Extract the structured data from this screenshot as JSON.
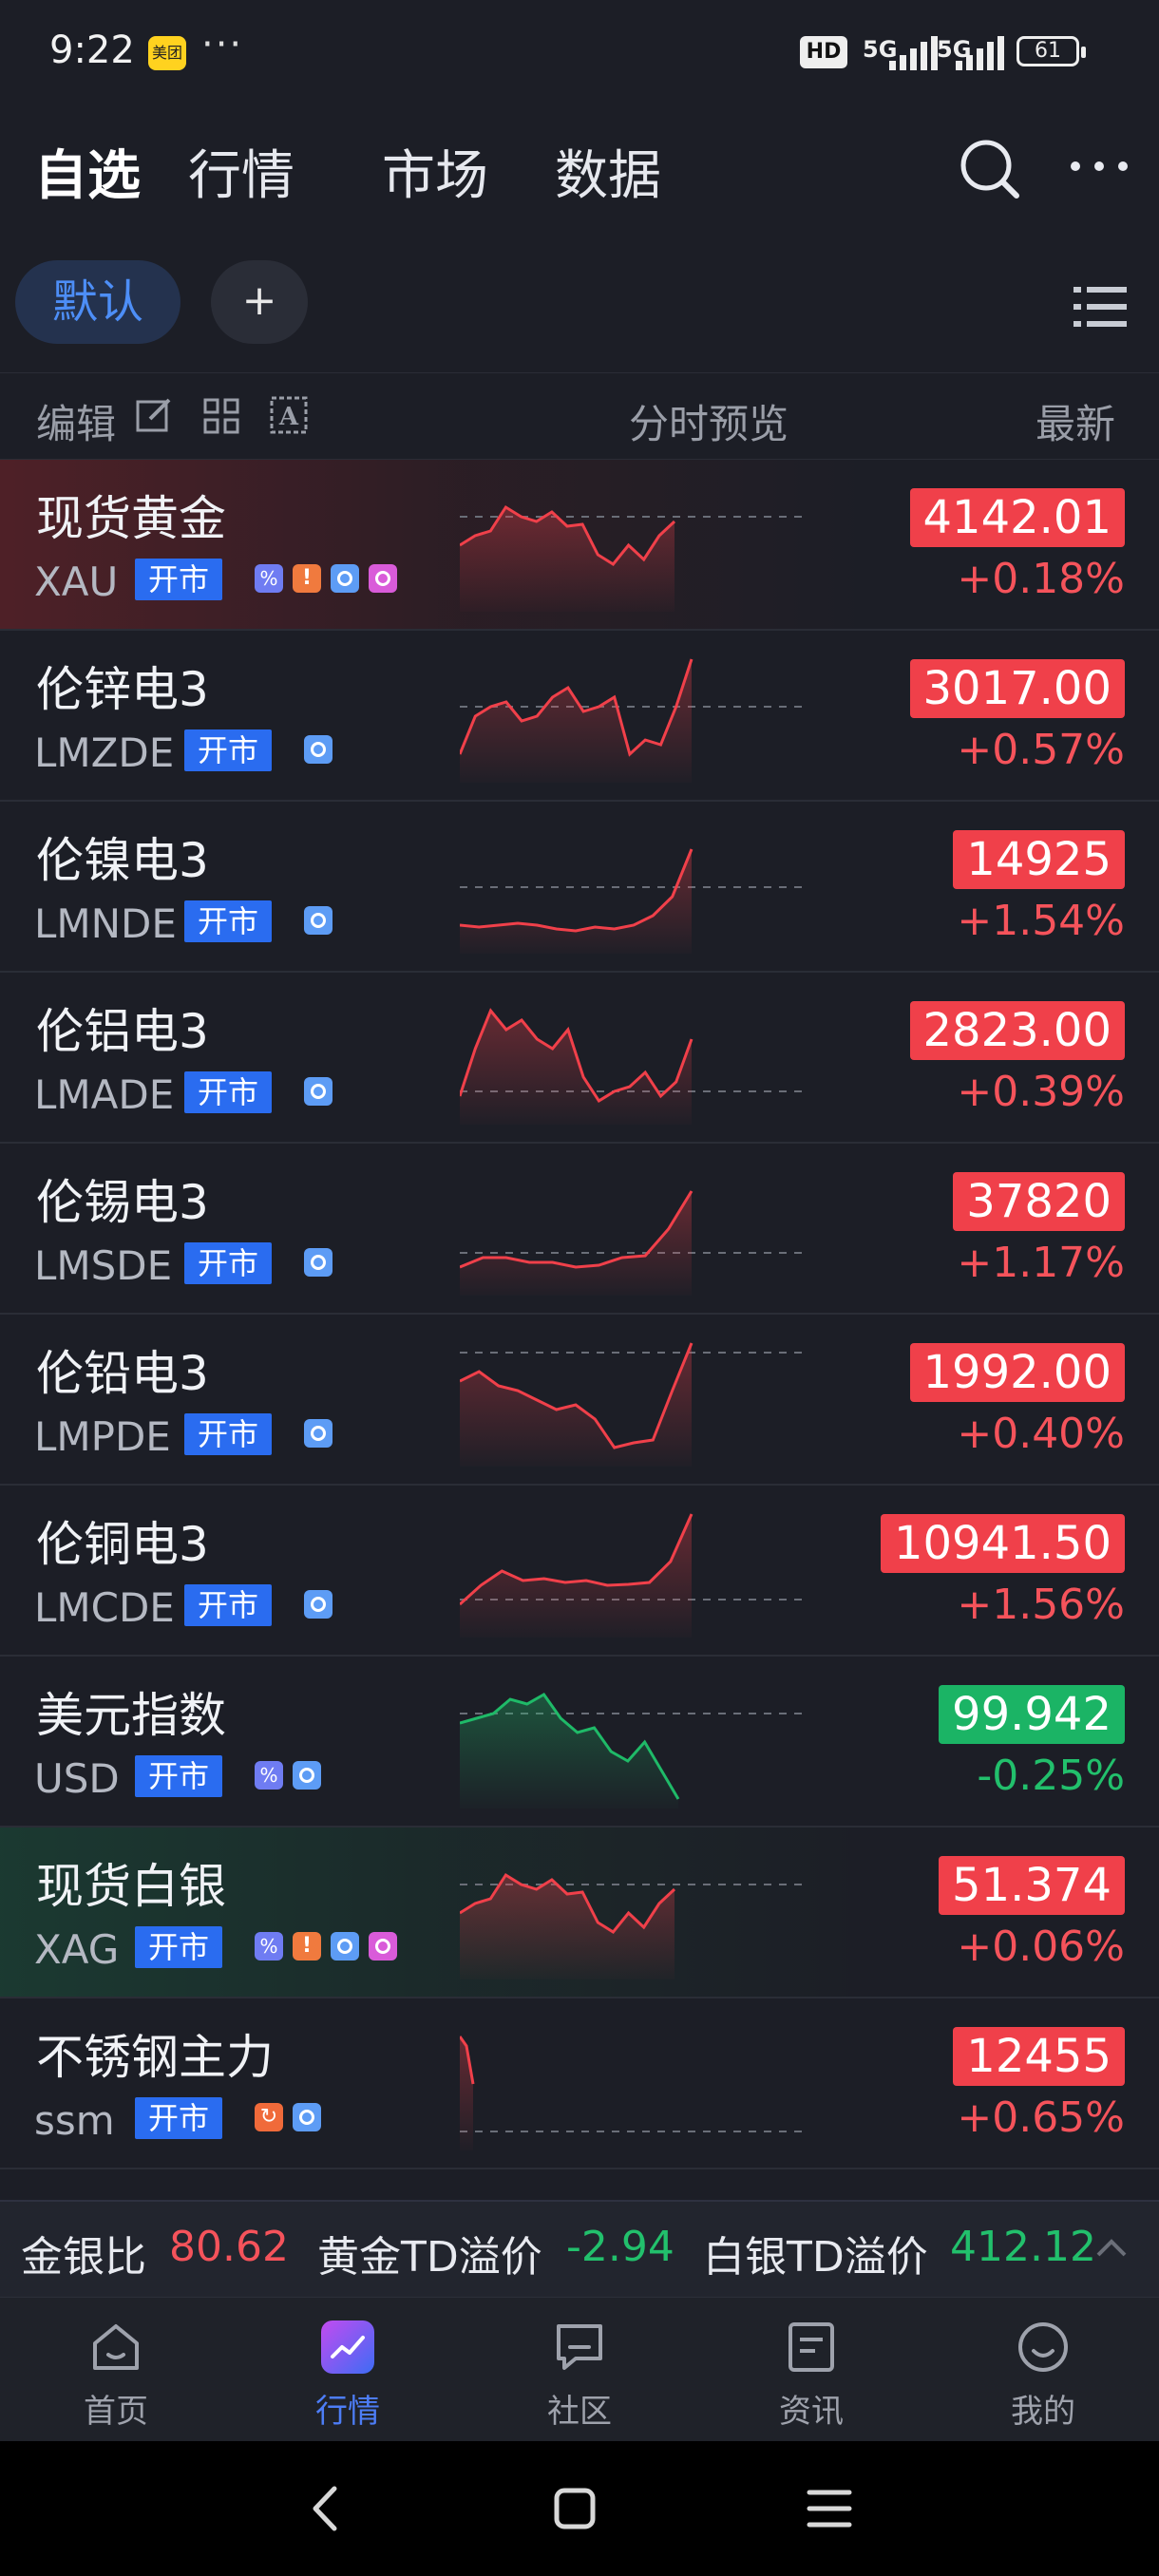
{
  "status_bar": {
    "time": "9:22",
    "app_badge": "美团",
    "dots": "···",
    "hd": "HD",
    "signal1": "5G",
    "signal2": "5G",
    "battery": "61"
  },
  "topnav": {
    "tabs": [
      {
        "label": "自选",
        "active": true
      },
      {
        "label": "行情",
        "active": false
      },
      {
        "label": "市场",
        "active": false
      },
      {
        "label": "数据",
        "active": false
      }
    ]
  },
  "groups": {
    "default_label": "默认",
    "add_label": "+"
  },
  "column_header": {
    "edit": "编辑",
    "preview": "分时预览",
    "latest": "最新"
  },
  "rows": [
    {
      "name": "现货黄金",
      "code": "XAU",
      "status": "开市",
      "tags": [
        "pct",
        "warn",
        "info",
        "clock"
      ],
      "price": "4142.01",
      "change": "+0.18%",
      "dir": "up",
      "highlight": "red"
    },
    {
      "name": "伦锌电3",
      "code": "LMZDE",
      "status": "开市",
      "tags": [
        "info"
      ],
      "price": "3017.00",
      "change": "+0.57%",
      "dir": "up",
      "highlight": ""
    },
    {
      "name": "伦镍电3",
      "code": "LMNDE",
      "status": "开市",
      "tags": [
        "info"
      ],
      "price": "14925",
      "change": "+1.54%",
      "dir": "up",
      "highlight": ""
    },
    {
      "name": "伦铝电3",
      "code": "LMADE",
      "status": "开市",
      "tags": [
        "info"
      ],
      "price": "2823.00",
      "change": "+0.39%",
      "dir": "up",
      "highlight": ""
    },
    {
      "name": "伦锡电3",
      "code": "LMSDE",
      "status": "开市",
      "tags": [
        "info"
      ],
      "price": "37820",
      "change": "+1.17%",
      "dir": "up",
      "highlight": ""
    },
    {
      "name": "伦铅电3",
      "code": "LMPDE",
      "status": "开市",
      "tags": [
        "info"
      ],
      "price": "1992.00",
      "change": "+0.40%",
      "dir": "up",
      "highlight": ""
    },
    {
      "name": "伦铜电3",
      "code": "LMCDE",
      "status": "开市",
      "tags": [
        "info"
      ],
      "price": "10941.50",
      "change": "+1.56%",
      "dir": "up",
      "highlight": ""
    },
    {
      "name": "美元指数",
      "code": "USD",
      "status": "开市",
      "tags": [
        "pct",
        "info"
      ],
      "price": "99.942",
      "change": "-0.25%",
      "dir": "down",
      "highlight": ""
    },
    {
      "name": "现货白银",
      "code": "XAG",
      "status": "开市",
      "tags": [
        "pct",
        "warn",
        "info",
        "clock"
      ],
      "price": "51.374",
      "change": "+0.06%",
      "dir": "up",
      "highlight": "green"
    },
    {
      "name": "不锈钢主力",
      "code": "ssm",
      "status": "开市",
      "tags": [
        "swap",
        "info"
      ],
      "price": "12455",
      "change": "+0.65%",
      "dir": "up",
      "highlight": ""
    }
  ],
  "ratio_bar": {
    "gold_silver_label": "金银比",
    "gold_silver_value": "80.62",
    "gold_td_label": "黄金TD溢价",
    "gold_td_value": "-2.94",
    "silver_td_label": "白银TD溢价",
    "silver_td_value": "412.12"
  },
  "tabbar": {
    "tabs": [
      {
        "label": "首页",
        "icon": "home-icon",
        "active": false
      },
      {
        "label": "行情",
        "icon": "market-icon",
        "active": true
      },
      {
        "label": "社区",
        "icon": "community-icon",
        "active": false
      },
      {
        "label": "资讯",
        "icon": "news-icon",
        "active": false
      },
      {
        "label": "我的",
        "icon": "profile-icon",
        "active": false
      }
    ]
  },
  "colors": {
    "up": "#f0404a",
    "down": "#1bb465",
    "accent": "#4d7df6",
    "background": "#1c1e26"
  }
}
